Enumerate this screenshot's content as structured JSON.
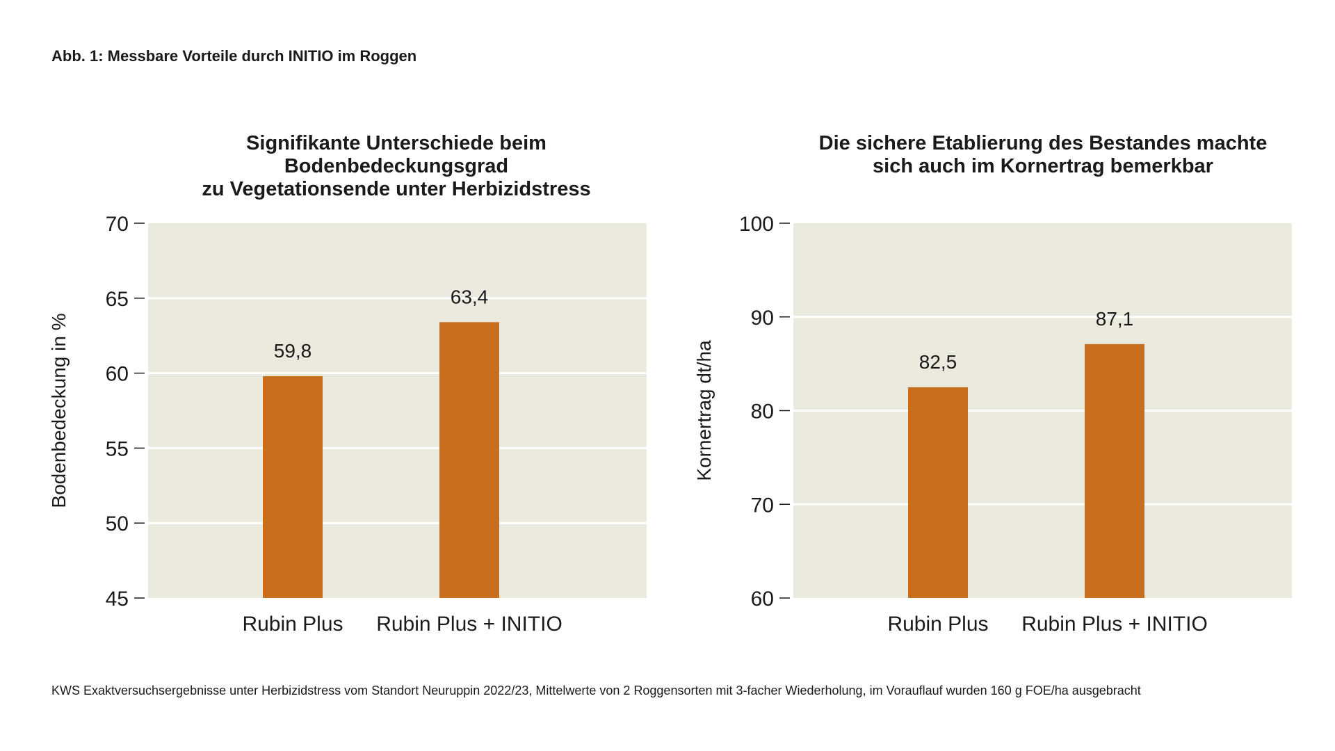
{
  "figure_title": "Abb. 1: Messbare Vorteile durch INITIO im Roggen",
  "footnote": "KWS Exaktversuchsergebnisse unter Herbizidstress vom Standort Neuruppin 2022/23, Mittelwerte von 2 Roggensorten mit 3-facher Wiederholung, im Vorauflauf wurden 160 g FOE/ha ausgebracht",
  "colors": {
    "bar": "#c86e1f",
    "plot_background": "#ebeadf",
    "gridline": "#ffffff",
    "text": "#1a1a1a"
  },
  "chart_data": [
    {
      "type": "bar",
      "title": [
        "Signifikante Unterschiede beim",
        "Bodenbedeckungsgrad",
        "zu Vegetationsende unter Herbizidstress"
      ],
      "categories": [
        "Rubin Plus",
        "Rubin Plus + INITIO"
      ],
      "values": [
        59.8,
        63.4
      ],
      "data_labels": [
        "59,8",
        "63,4"
      ],
      "xlabel": "",
      "ylabel": "Bodenbedeckung in %",
      "ylim": [
        45,
        70
      ],
      "yticks": [
        45,
        50,
        55,
        60,
        65,
        70
      ],
      "grid": true,
      "legend": false
    },
    {
      "type": "bar",
      "title": [
        "Die sichere Etablierung des Bestandes machte",
        "sich auch im Kornertrag bemerkbar"
      ],
      "categories": [
        "Rubin Plus",
        "Rubin Plus + INITIO"
      ],
      "values": [
        82.5,
        87.1
      ],
      "data_labels": [
        "82,5",
        "87,1"
      ],
      "xlabel": "",
      "ylabel": "Kornertrag dt/ha",
      "ylim": [
        60,
        100
      ],
      "yticks": [
        60,
        70,
        80,
        90,
        100
      ],
      "grid": true,
      "legend": false
    }
  ]
}
